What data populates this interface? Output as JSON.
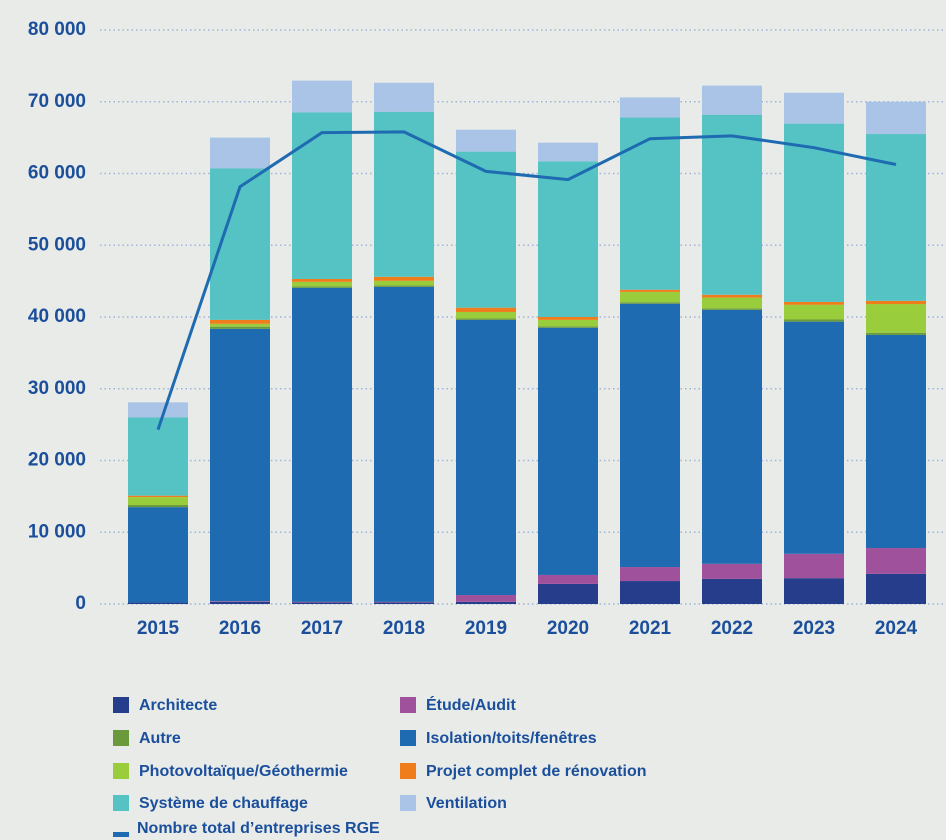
{
  "chart_data": {
    "type": "bar",
    "stacked": true,
    "categories": [
      "2015",
      "2016",
      "2017",
      "2018",
      "2019",
      "2020",
      "2021",
      "2022",
      "2023",
      "2024"
    ],
    "ylim": [
      0,
      80000
    ],
    "yticks": [
      {
        "value": 0,
        "label": "0"
      },
      {
        "value": 10000,
        "label": "10 000"
      },
      {
        "value": 20000,
        "label": "20 000"
      },
      {
        "value": 30000,
        "label": "30 000"
      },
      {
        "value": 40000,
        "label": "40 000"
      },
      {
        "value": 50000,
        "label": "50 000"
      },
      {
        "value": 60000,
        "label": "60 000"
      },
      {
        "value": 70000,
        "label": "70 000"
      },
      {
        "value": 80000,
        "label": "80 000"
      }
    ],
    "grid": true,
    "series": [
      {
        "name": "Architecte",
        "color": "#263d8c",
        "values": [
          200,
          300,
          200,
          200,
          300,
          2800,
          3200,
          3500,
          3600,
          4200
        ]
      },
      {
        "name": "Étude/Audit",
        "color": "#a0519b",
        "values": [
          0,
          100,
          100,
          100,
          950,
          1250,
          1950,
          2100,
          3400,
          3600
        ]
      },
      {
        "name": "Isolation/toits/fenêtres",
        "color": "#1e6bb2",
        "values": [
          13300,
          37950,
          43770,
          43900,
          38350,
          34450,
          36700,
          35400,
          32350,
          29700
        ]
      },
      {
        "name": "Autre",
        "color": "#6a9a3c",
        "values": [
          300,
          300,
          200,
          200,
          200,
          200,
          200,
          200,
          300,
          300
        ]
      },
      {
        "name": "Photovoltaïque/Géothermie",
        "color": "#9acd3c",
        "values": [
          1100,
          400,
          630,
          650,
          900,
          900,
          1450,
          1500,
          2050,
          4000
        ]
      },
      {
        "name": "Projet complet de rénovation",
        "color": "#f07d1c",
        "values": [
          200,
          550,
          400,
          550,
          600,
          400,
          300,
          400,
          400,
          450
        ]
      },
      {
        "name": "Système de chauffage",
        "color": "#55c2c3",
        "values": [
          10900,
          21100,
          23200,
          23000,
          21750,
          21700,
          24000,
          25100,
          24850,
          23250
        ]
      },
      {
        "name": "Ventilation",
        "color": "#a9c4e6",
        "values": [
          2100,
          4300,
          4450,
          4050,
          3050,
          2600,
          2800,
          4050,
          4300,
          4500
        ]
      }
    ],
    "line_series": {
      "name": "Nombre total d’entreprises RGE",
      "color": "#1e6bb2",
      "values": [
        24300,
        58150,
        65700,
        65800,
        60300,
        59150,
        64850,
        65250,
        63600,
        61250
      ]
    }
  }
}
